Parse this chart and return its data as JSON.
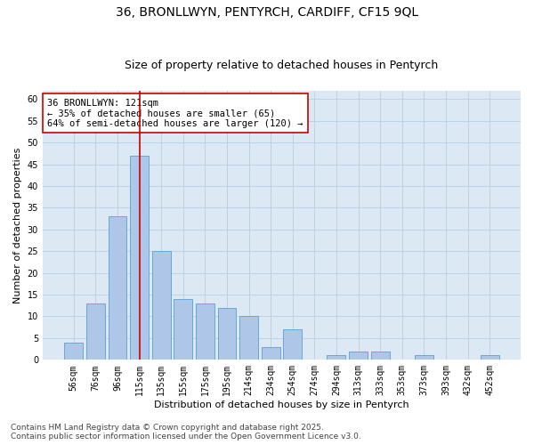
{
  "title_line1": "36, BRONLLWYN, PENTYRCH, CARDIFF, CF15 9QL",
  "title_line2": "Size of property relative to detached houses in Pentyrch",
  "xlabel": "Distribution of detached houses by size in Pentyrch",
  "ylabel": "Number of detached properties",
  "categories": [
    "56sqm",
    "76sqm",
    "96sqm",
    "115sqm",
    "135sqm",
    "155sqm",
    "175sqm",
    "195sqm",
    "214sqm",
    "234sqm",
    "254sqm",
    "274sqm",
    "294sqm",
    "313sqm",
    "333sqm",
    "353sqm",
    "373sqm",
    "393sqm",
    "432sqm",
    "452sqm"
  ],
  "values": [
    4,
    13,
    33,
    47,
    25,
    14,
    13,
    12,
    10,
    3,
    7,
    0,
    1,
    2,
    2,
    0,
    1,
    0,
    0,
    1
  ],
  "bar_color": "#aec6e8",
  "bar_edge_color": "#5a9fd4",
  "bg_color": "#dce9f5",
  "grid_color": "#b8cfe0",
  "vline_x_index": 3,
  "vline_color": "#cc0000",
  "annotation_text": "36 BRONLLWYN: 121sqm\n← 35% of detached houses are smaller (65)\n64% of semi-detached houses are larger (120) →",
  "annotation_box_color": "#ffffff",
  "annotation_box_edge": "#cc0000",
  "ylim": [
    0,
    62
  ],
  "yticks": [
    0,
    5,
    10,
    15,
    20,
    25,
    30,
    35,
    40,
    45,
    50,
    55,
    60
  ],
  "footer_line1": "Contains HM Land Registry data © Crown copyright and database right 2025.",
  "footer_line2": "Contains public sector information licensed under the Open Government Licence v3.0.",
  "title_fontsize": 10,
  "subtitle_fontsize": 9,
  "axis_label_fontsize": 8,
  "tick_fontsize": 7,
  "annotation_fontsize": 7.5,
  "footer_fontsize": 6.5
}
